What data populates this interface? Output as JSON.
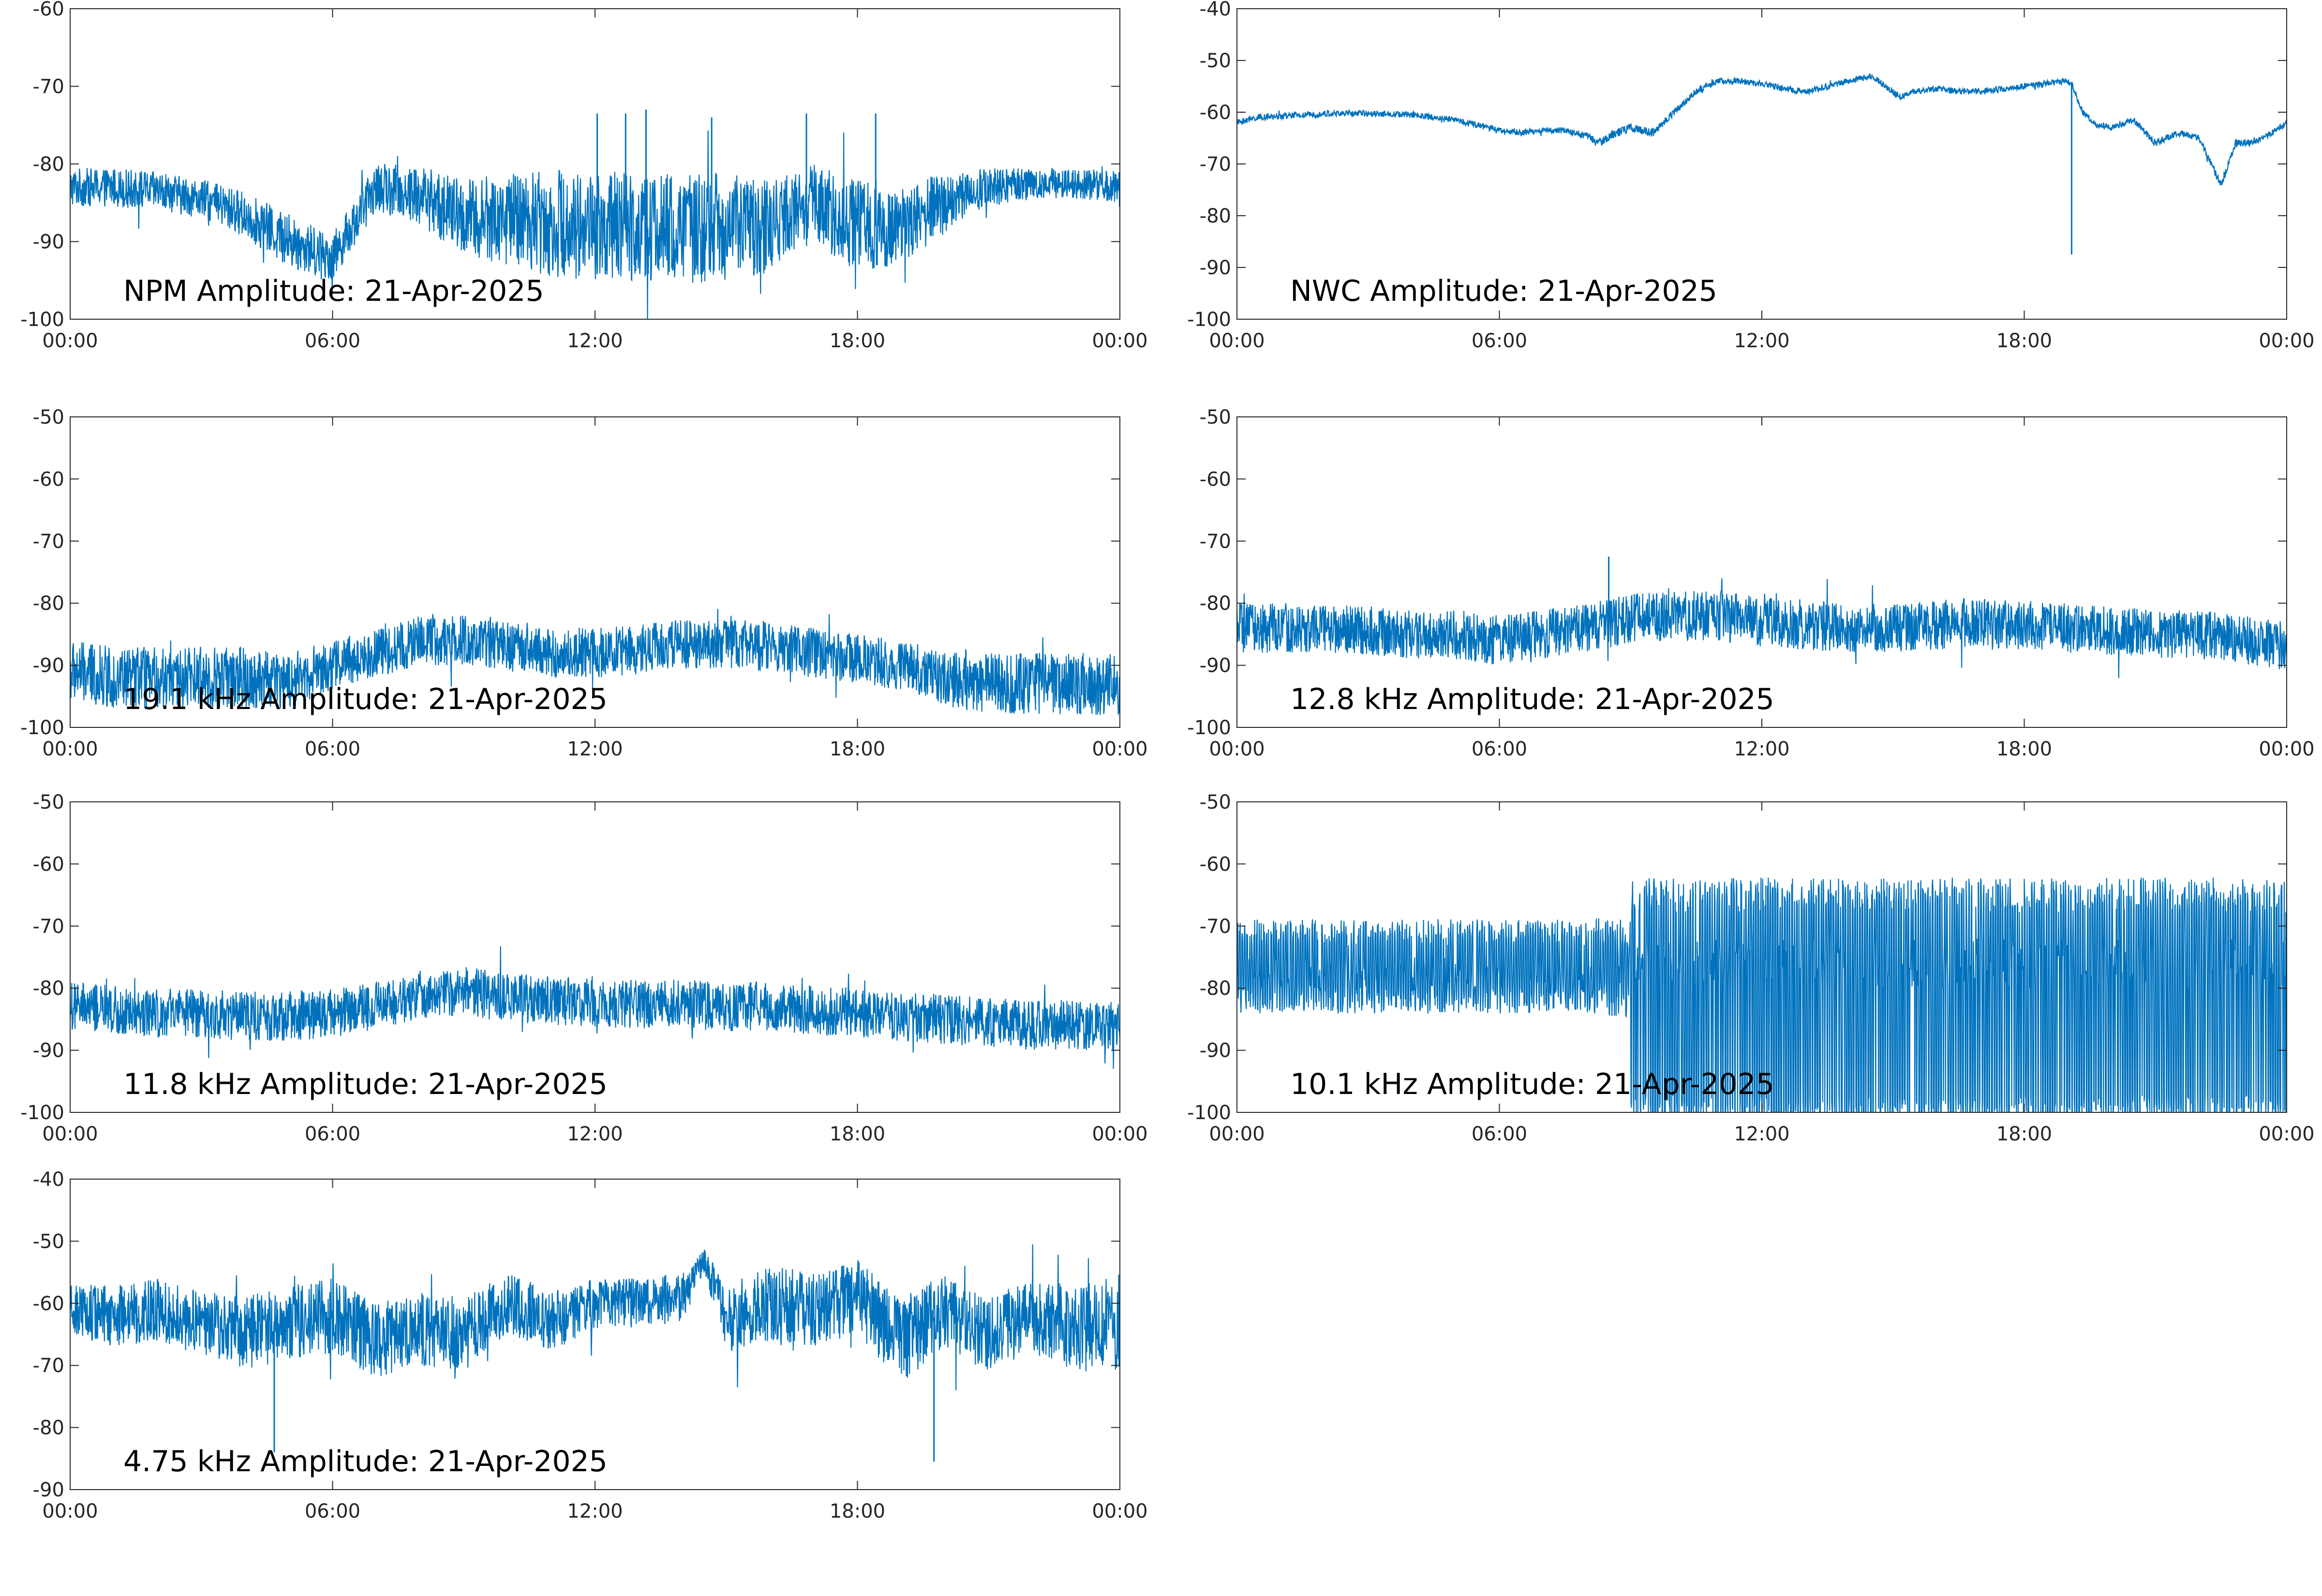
{
  "figure": {
    "background": "#ffffff",
    "series_color": "#0072bd",
    "axis_color": "#262626"
  },
  "chart_data": [
    {
      "type": "line",
      "title": "NPM Amplitude: 21-Apr-2025",
      "xlabel": "",
      "ylabel": "",
      "x_tick_labels": [
        "00:00",
        "06:00",
        "12:00",
        "18:00",
        "00:00"
      ],
      "ylim": [
        -100,
        -60
      ],
      "y_ticks": [
        -100,
        -90,
        -80,
        -70,
        -60
      ],
      "grid": false,
      "series": [
        {
          "x": [
            "00:00",
            "01:00",
            "02:00",
            "03:00",
            "04:00",
            "05:00",
            "06:00",
            "07:00",
            "08:00",
            "09:00",
            "10:00",
            "11:00",
            "12:00",
            "13:00",
            "14:00",
            "15:00",
            "16:00",
            "17:00",
            "18:00",
            "19:00",
            "20:00",
            "21:00",
            "22:00",
            "23:00",
            "24:00"
          ],
          "values": [
            -83,
            -83,
            -83.5,
            -84.5,
            -86.5,
            -90,
            -92,
            -83,
            -84,
            -87,
            -87,
            -87.5,
            -88,
            -88,
            -88.5,
            -88,
            -88,
            -85,
            -88,
            -88,
            -85,
            -83,
            -82.5,
            -82.5,
            -83
          ],
          "spread": [
            2.5,
            2.5,
            2.5,
            2.5,
            3,
            3.5,
            3,
            3,
            4,
            5,
            6,
            7,
            7,
            7,
            7,
            7,
            6,
            5,
            6,
            5,
            4,
            2.5,
            2,
            2,
            2
          ]
        }
      ],
      "spikes": [
        {
          "x": "12:03",
          "value": -73.5
        },
        {
          "x": "12:42",
          "value": -73.5
        },
        {
          "x": "13:10",
          "value": -73
        },
        {
          "x": "14:40",
          "value": -74
        },
        {
          "x": "16:50",
          "value": -73.5
        },
        {
          "x": "18:25",
          "value": -73.5
        }
      ]
    },
    {
      "type": "line",
      "title": "NWC Amplitude: 21-Apr-2025",
      "xlabel": "",
      "ylabel": "",
      "x_tick_labels": [
        "00:00",
        "06:00",
        "12:00",
        "18:00",
        "00:00"
      ],
      "ylim": [
        -100,
        -40
      ],
      "y_ticks": [
        -100,
        -90,
        -80,
        -70,
        -60,
        -50,
        -40
      ],
      "grid": false,
      "series": [
        {
          "x": [
            "00:00",
            "00:30",
            "01:00",
            "02:00",
            "03:00",
            "04:00",
            "05:00",
            "05:30",
            "06:00",
            "06:30",
            "07:00",
            "07:30",
            "08:00",
            "08:15",
            "08:40",
            "09:00",
            "09:30",
            "10:00",
            "10:30",
            "11:00",
            "11:30",
            "12:00",
            "12:30",
            "13:00",
            "13:30",
            "14:00",
            "14:30",
            "14:50",
            "15:10",
            "15:30",
            "16:00",
            "16:30",
            "17:00",
            "17:30",
            "18:00",
            "18:30",
            "18:55",
            "19:05",
            "19:20",
            "19:40",
            "20:00",
            "20:30",
            "21:00",
            "21:30",
            "22:00",
            "22:30",
            "22:50",
            "23:10",
            "23:40",
            "24:00"
          ],
          "values": [
            -62,
            -61,
            -60.8,
            -60.3,
            -60.2,
            -60.5,
            -61.5,
            -62.5,
            -63.5,
            -64,
            -63.5,
            -63.5,
            -64.5,
            -66,
            -64,
            -63,
            -64,
            -60,
            -56,
            -54,
            -54,
            -54.5,
            -55.5,
            -56,
            -55,
            -54,
            -53,
            -55,
            -57,
            -56,
            -55.5,
            -56,
            -56,
            -55.5,
            -55,
            -54.5,
            -54,
            -54.5,
            -60,
            -62.5,
            -63,
            -61.5,
            -66,
            -64,
            -65,
            -74,
            -66,
            -66,
            -64,
            -62
          ],
          "spread": [
            0.6,
            0.6,
            0.6,
            0.6,
            0.6,
            0.6,
            0.6,
            0.6,
            0.6,
            0.6,
            0.6,
            0.6,
            0.7,
            0.8,
            0.8,
            0.8,
            0.8,
            0.7,
            0.6,
            0.6,
            0.6,
            0.6,
            0.6,
            0.6,
            0.6,
            0.6,
            0.6,
            0.6,
            0.6,
            0.6,
            0.6,
            0.6,
            0.6,
            0.6,
            0.6,
            0.6,
            0.6,
            0.6,
            0.6,
            0.6,
            0.6,
            0.6,
            0.6,
            0.6,
            0.6,
            0.8,
            0.8,
            0.8,
            0.6,
            0.6
          ]
        }
      ],
      "spikes": [
        {
          "x": "19:05",
          "value": -87.5
        }
      ]
    },
    {
      "type": "line",
      "title": "19.1 kHz Amplitude: 21-Apr-2025",
      "xlabel": "",
      "ylabel": "",
      "x_tick_labels": [
        "00:00",
        "06:00",
        "12:00",
        "18:00",
        "00:00"
      ],
      "ylim": [
        -100,
        -50
      ],
      "y_ticks": [
        -100,
        -90,
        -80,
        -70,
        -60,
        -50
      ],
      "grid": false,
      "series": [
        {
          "x": [
            "00:00",
            "01:00",
            "02:00",
            "03:00",
            "04:00",
            "05:00",
            "06:00",
            "07:00",
            "08:00",
            "09:00",
            "10:00",
            "11:00",
            "12:00",
            "13:00",
            "14:00",
            "15:00",
            "16:00",
            "17:00",
            "18:00",
            "19:00",
            "20:00",
            "21:00",
            "22:00",
            "23:00",
            "24:00"
          ],
          "values": [
            -91,
            -92,
            -92,
            -92,
            -92,
            -92.5,
            -90,
            -88,
            -86,
            -86,
            -87,
            -88,
            -88,
            -87.5,
            -86.5,
            -86.5,
            -87,
            -88,
            -89,
            -90,
            -92,
            -93,
            -93,
            -93,
            -93
          ],
          "spread": [
            5,
            5,
            5,
            5,
            5,
            4.5,
            4,
            4,
            4,
            4,
            4,
            4,
            4,
            4,
            4,
            4,
            4,
            4,
            4,
            4,
            4.5,
            5,
            5,
            5,
            5
          ]
        }
      ],
      "spikes": []
    },
    {
      "type": "line",
      "title": "12.8 kHz Amplitude: 21-Apr-2025",
      "xlabel": "",
      "ylabel": "",
      "x_tick_labels": [
        "00:00",
        "06:00",
        "12:00",
        "18:00",
        "00:00"
      ],
      "ylim": [
        -100,
        -50
      ],
      "y_ticks": [
        -100,
        -90,
        -80,
        -70,
        -60,
        -50
      ],
      "grid": false,
      "series": [
        {
          "x": [
            "00:00",
            "01:00",
            "02:00",
            "03:00",
            "04:00",
            "05:00",
            "06:00",
            "07:00",
            "08:00",
            "09:00",
            "10:00",
            "11:00",
            "12:00",
            "13:00",
            "14:00",
            "15:00",
            "16:00",
            "17:00",
            "18:00",
            "19:00",
            "20:00",
            "21:00",
            "22:00",
            "23:00",
            "24:00"
          ],
          "values": [
            -84,
            -84,
            -84,
            -84.5,
            -85,
            -85,
            -86,
            -85,
            -84,
            -82.5,
            -82,
            -82,
            -83,
            -83.5,
            -84,
            -84,
            -83.5,
            -83,
            -83.5,
            -84,
            -84.5,
            -85,
            -85,
            -86,
            -87
          ],
          "spread": [
            4,
            4,
            4,
            4,
            4,
            4,
            4,
            4,
            4,
            4,
            4,
            4,
            4,
            4,
            4,
            4,
            4,
            4,
            4,
            4,
            4,
            4,
            4,
            4,
            4
          ]
        }
      ],
      "spikes": [
        {
          "x": "08:30",
          "value": -72.5
        }
      ]
    },
    {
      "type": "line",
      "title": "11.8 kHz Amplitude: 21-Apr-2025",
      "xlabel": "",
      "ylabel": "",
      "x_tick_labels": [
        "00:00",
        "06:00",
        "12:00",
        "18:00",
        "00:00"
      ],
      "ylim": [
        -100,
        -50
      ],
      "y_ticks": [
        -100,
        -90,
        -80,
        -70,
        -60,
        -50
      ],
      "grid": false,
      "series": [
        {
          "x": [
            "00:00",
            "01:00",
            "02:00",
            "03:00",
            "04:00",
            "05:00",
            "06:00",
            "07:00",
            "08:00",
            "09:00",
            "10:00",
            "11:00",
            "12:00",
            "13:00",
            "14:00",
            "15:00",
            "16:00",
            "17:00",
            "18:00",
            "19:00",
            "20:00",
            "21:00",
            "22:00",
            "23:00",
            "24:00"
          ],
          "values": [
            -83,
            -83.5,
            -84,
            -84,
            -84.5,
            -84.5,
            -84,
            -83,
            -81,
            -80.5,
            -81.5,
            -82,
            -82.5,
            -82.5,
            -82.5,
            -83,
            -83,
            -83.5,
            -84,
            -84.5,
            -85,
            -85.5,
            -86,
            -86,
            -86
          ],
          "spread": [
            4,
            4,
            4,
            4,
            4,
            4,
            4,
            4,
            4,
            4,
            4,
            4,
            4,
            4,
            4,
            4,
            4,
            4,
            4,
            4,
            4,
            4,
            4,
            4,
            4
          ]
        }
      ],
      "spikes": []
    },
    {
      "type": "line",
      "title": "10.1 kHz Amplitude: 21-Apr-2025",
      "xlabel": "",
      "ylabel": "",
      "x_tick_labels": [
        "00:00",
        "06:00",
        "12:00",
        "18:00",
        "00:00"
      ],
      "ylim": [
        -100,
        -50
      ],
      "y_ticks": [
        -100,
        -90,
        -80,
        -70,
        -60,
        -50
      ],
      "grid": false,
      "series": [
        {
          "x": [
            "00:00",
            "01:00",
            "02:00",
            "03:00",
            "04:00",
            "05:00",
            "06:00",
            "07:00",
            "08:00",
            "09:00",
            "09:30",
            "10:00",
            "11:00",
            "12:00",
            "13:00",
            "14:00",
            "15:00",
            "16:00",
            "17:00",
            "18:00",
            "19:00",
            "20:00",
            "21:00",
            "22:00",
            "23:00",
            "24:00"
          ],
          "values": [
            -78,
            -78,
            -78,
            -78,
            -78,
            -78,
            -78,
            -78,
            -78,
            -76,
            -76,
            -76,
            -76,
            -76,
            -76,
            -76,
            -76,
            -76,
            -76,
            -76,
            -76,
            -76,
            -76,
            -76,
            -76,
            -76
          ],
          "spread": [
            3,
            3,
            3,
            3,
            3,
            3,
            3,
            3,
            3,
            4,
            4,
            4,
            4,
            4,
            4,
            4,
            4,
            4,
            4,
            4,
            4,
            4,
            4,
            4,
            4,
            4
          ]
        }
      ],
      "switching": [
        {
          "from": "00:00",
          "to": "09:00",
          "high": -71,
          "low": -82
        },
        {
          "from": "09:00",
          "to": "24:00",
          "high": -65,
          "low": -100
        }
      ],
      "spikes": []
    },
    {
      "type": "line",
      "title": "4.75 kHz Amplitude: 21-Apr-2025",
      "xlabel": "",
      "ylabel": "",
      "x_tick_labels": [
        "00:00",
        "06:00",
        "12:00",
        "18:00",
        "00:00"
      ],
      "ylim": [
        -90,
        -40
      ],
      "y_ticks": [
        -90,
        -80,
        -70,
        -60,
        -50,
        -40
      ],
      "grid": false,
      "series": [
        {
          "x": [
            "00:00",
            "01:00",
            "02:00",
            "03:00",
            "04:00",
            "05:00",
            "06:00",
            "07:00",
            "08:00",
            "09:00",
            "10:00",
            "11:00",
            "12:00",
            "13:00",
            "14:00",
            "14:30",
            "15:00",
            "16:00",
            "17:00",
            "18:00",
            "19:00",
            "20:00",
            "21:00",
            "22:00",
            "23:00",
            "24:00"
          ],
          "values": [
            -61,
            -62,
            -61,
            -63,
            -65,
            -63,
            -62,
            -66,
            -64,
            -65,
            -60,
            -63,
            -60,
            -60,
            -59,
            -53,
            -62,
            -60,
            -61,
            -59,
            -66,
            -61,
            -65,
            -62,
            -64,
            -63
          ],
          "spread": [
            4,
            5,
            5,
            5,
            6,
            6,
            6,
            6,
            6,
            6,
            5,
            5,
            4,
            4,
            4,
            2,
            6,
            6,
            6,
            6,
            7,
            6,
            6,
            6,
            7,
            8
          ]
        }
      ],
      "spikes": [
        {
          "x": "19:45",
          "value": -85.5
        },
        {
          "x": "04:40",
          "value": -84
        }
      ]
    }
  ]
}
